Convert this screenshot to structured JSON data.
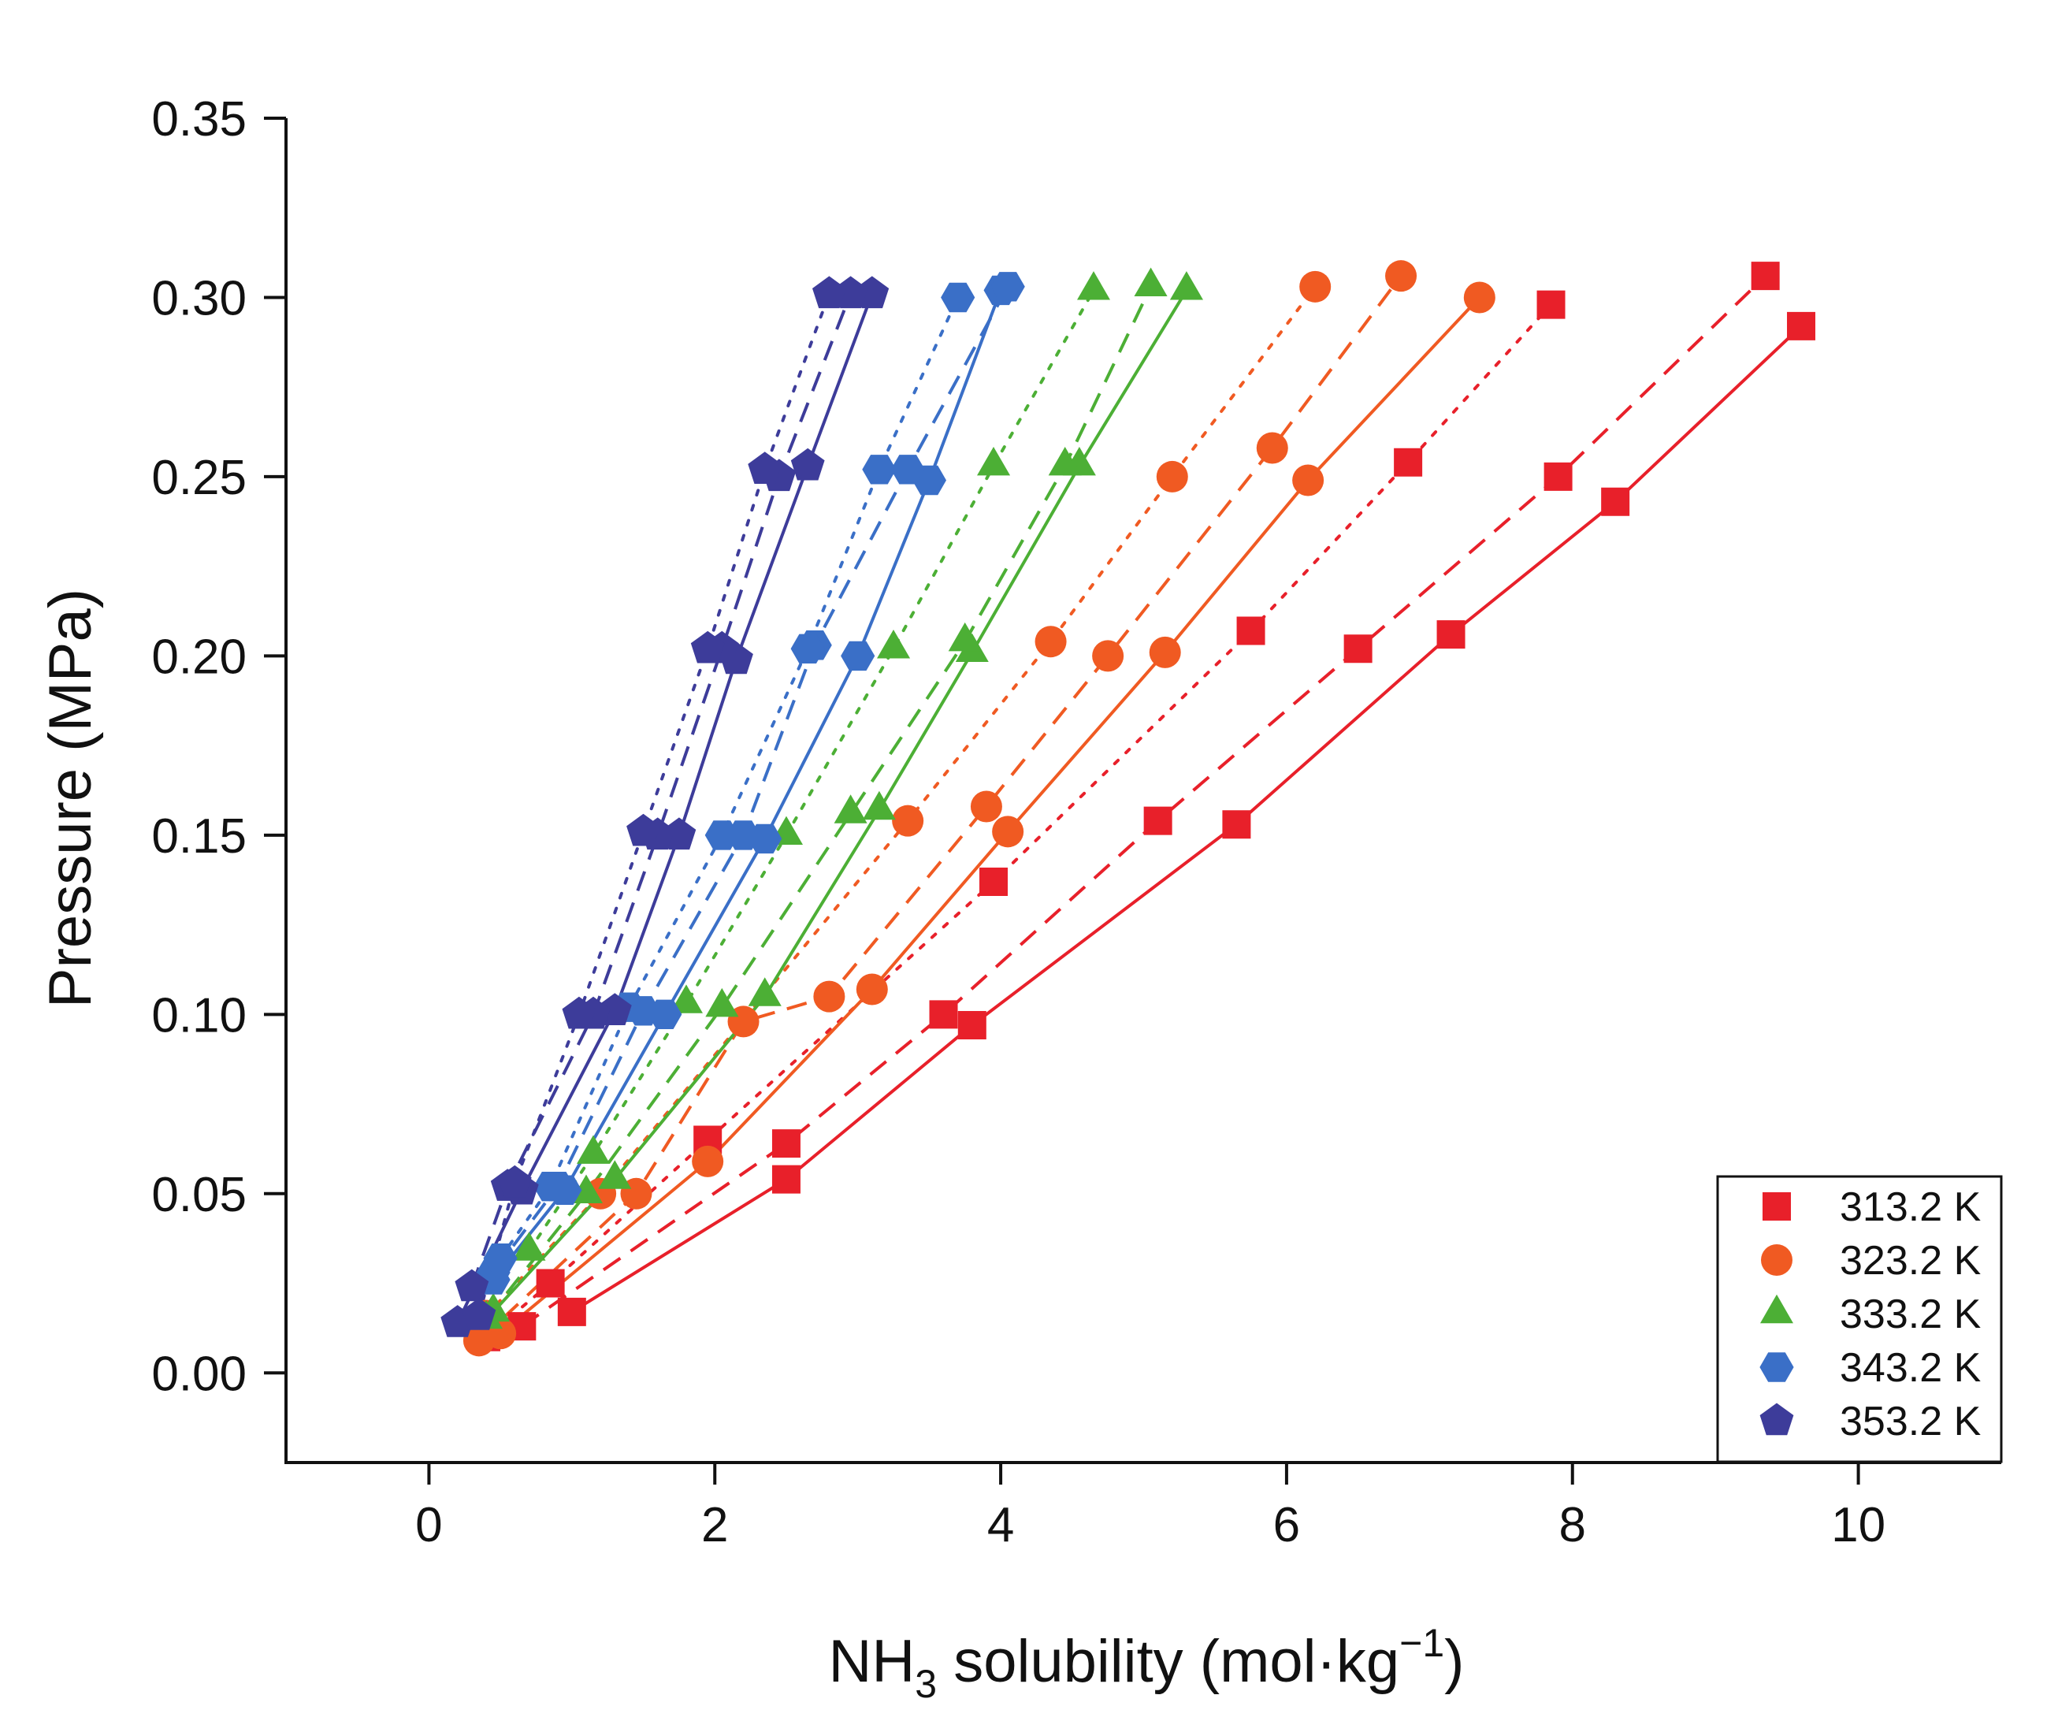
{
  "chart_data": {
    "type": "scatter",
    "title": "",
    "ylabel": "Pressure (MPa)",
    "xlabel_main": "NH",
    "xlabel_sub": "3",
    "xlabel_rest": " solubility (mol·kg",
    "xlabel_sup": "−1",
    "xlabel_end": ")",
    "xlim": [
      -1,
      11
    ],
    "ylim": [
      -0.025,
      0.35
    ],
    "xticks": [
      0,
      2,
      4,
      6,
      8,
      10
    ],
    "xtick_labels": [
      "0",
      "2",
      "4",
      "6",
      "8",
      "10"
    ],
    "yticks": [
      0.0,
      0.05,
      0.1,
      0.15,
      0.2,
      0.25,
      0.3,
      0.35
    ],
    "ytick_labels": [
      "0.00",
      "0.05",
      "0.10",
      "0.15",
      "0.20",
      "0.25",
      "0.30",
      "0.35"
    ],
    "grid": false,
    "legend_position": "bottom-right",
    "series": [
      {
        "name": "313.2 K",
        "color": "#e8202a",
        "marker": "square",
        "lines": [
          {
            "style": "solid",
            "points": [
              [
                1.0,
                0.017
              ],
              [
                2.5,
                0.054
              ],
              [
                3.8,
                0.097
              ],
              [
                5.65,
                0.153
              ],
              [
                7.15,
                0.206
              ],
              [
                8.3,
                0.243
              ],
              [
                9.6,
                0.292
              ]
            ]
          },
          {
            "style": "dashed",
            "points": [
              [
                0.65,
                0.013
              ],
              [
                2.5,
                0.064
              ],
              [
                3.6,
                0.1
              ],
              [
                5.1,
                0.154
              ],
              [
                6.5,
                0.202
              ],
              [
                7.9,
                0.25
              ],
              [
                9.35,
                0.306
              ]
            ]
          },
          {
            "style": "dotted",
            "points": [
              [
                0.4,
                0.01
              ],
              [
                0.85,
                0.025
              ],
              [
                1.95,
                0.065
              ],
              [
                3.95,
                0.137
              ],
              [
                5.75,
                0.207
              ],
              [
                6.85,
                0.254
              ],
              [
                7.85,
                0.298
              ]
            ]
          }
        ]
      },
      {
        "name": "323.2 K",
        "color": "#f05a22",
        "marker": "circle",
        "lines": [
          {
            "style": "solid",
            "points": [
              [
                0.5,
                0.011
              ],
              [
                1.95,
                0.059
              ],
              [
                3.1,
                0.107
              ],
              [
                4.05,
                0.151
              ],
              [
                5.15,
                0.201
              ],
              [
                6.15,
                0.249
              ],
              [
                7.35,
                0.3
              ]
            ]
          },
          {
            "style": "dashed",
            "points": [
              [
                0.35,
                0.009
              ],
              [
                1.45,
                0.05
              ],
              [
                2.2,
                0.098
              ],
              [
                2.8,
                0.105
              ],
              [
                3.9,
                0.158
              ],
              [
                4.75,
                0.2
              ],
              [
                5.9,
                0.258
              ],
              [
                6.8,
                0.306
              ]
            ]
          },
          {
            "style": "dotted",
            "points": [
              [
                0.4,
                0.016
              ],
              [
                1.2,
                0.05
              ],
              [
                3.35,
                0.154
              ],
              [
                4.35,
                0.204
              ],
              [
                5.2,
                0.25
              ],
              [
                6.2,
                0.303
              ]
            ]
          }
        ]
      },
      {
        "name": "333.2 K",
        "color": "#4caf35",
        "marker": "triangle",
        "lines": [
          {
            "style": "solid",
            "points": [
              [
                0.45,
                0.017
              ],
              [
                1.3,
                0.054
              ],
              [
                2.35,
                0.105
              ],
              [
                3.15,
                0.157
              ],
              [
                3.8,
                0.201
              ],
              [
                4.55,
                0.253
              ],
              [
                5.3,
                0.302
              ]
            ]
          },
          {
            "style": "dashed",
            "points": [
              [
                0.4,
                0.015
              ],
              [
                1.1,
                0.05
              ],
              [
                2.05,
                0.102
              ],
              [
                2.95,
                0.156
              ],
              [
                3.75,
                0.204
              ],
              [
                4.45,
                0.253
              ],
              [
                5.05,
                0.303
              ]
            ]
          },
          {
            "style": "dotted",
            "points": [
              [
                0.7,
                0.034
              ],
              [
                1.15,
                0.061
              ],
              [
                1.8,
                0.103
              ],
              [
                2.5,
                0.15
              ],
              [
                3.25,
                0.202
              ],
              [
                3.95,
                0.253
              ],
              [
                4.65,
                0.302
              ]
            ]
          }
        ]
      },
      {
        "name": "343.2 K",
        "color": "#3a6fc7",
        "marker": "hexagon",
        "lines": [
          {
            "style": "solid",
            "points": [
              [
                0.45,
                0.026
              ],
              [
                0.95,
                0.051
              ],
              [
                1.65,
                0.1
              ],
              [
                2.35,
                0.149
              ],
              [
                3.0,
                0.2
              ],
              [
                3.5,
                0.249
              ],
              [
                4.0,
                0.302
              ]
            ]
          },
          {
            "style": "dashed",
            "points": [
              [
                0.45,
                0.028
              ],
              [
                0.9,
                0.052
              ],
              [
                1.5,
                0.101
              ],
              [
                2.2,
                0.15
              ],
              [
                2.7,
                0.203
              ],
              [
                3.35,
                0.252
              ],
              [
                4.05,
                0.303
              ]
            ]
          },
          {
            "style": "dotted",
            "points": [
              [
                0.5,
                0.032
              ],
              [
                0.85,
                0.052
              ],
              [
                1.4,
                0.102
              ],
              [
                2.05,
                0.15
              ],
              [
                2.65,
                0.202
              ],
              [
                3.15,
                0.252
              ],
              [
                3.7,
                0.3
              ]
            ]
          }
        ]
      },
      {
        "name": "353.2 K",
        "color": "#3d3c9a",
        "marker": "pentagon",
        "lines": [
          {
            "style": "solid",
            "points": [
              [
                0.2,
                0.014
              ],
              [
                0.65,
                0.051
              ],
              [
                1.3,
                0.101
              ],
              [
                1.75,
                0.15
              ],
              [
                2.15,
                0.199
              ],
              [
                2.65,
                0.253
              ],
              [
                3.1,
                0.301
              ]
            ]
          },
          {
            "style": "dashed",
            "points": [
              [
                0.3,
                0.024
              ],
              [
                0.55,
                0.052
              ],
              [
                1.15,
                0.1
              ],
              [
                1.6,
                0.15
              ],
              [
                2.05,
                0.202
              ],
              [
                2.45,
                0.25
              ],
              [
                2.95,
                0.301
              ]
            ]
          },
          {
            "style": "dotted",
            "points": [
              [
                0.35,
                0.016
              ],
              [
                0.6,
                0.053
              ],
              [
                1.05,
                0.1
              ],
              [
                1.5,
                0.151
              ],
              [
                1.95,
                0.202
              ],
              [
                2.35,
                0.252
              ],
              [
                2.8,
                0.301
              ]
            ]
          }
        ]
      }
    ]
  }
}
